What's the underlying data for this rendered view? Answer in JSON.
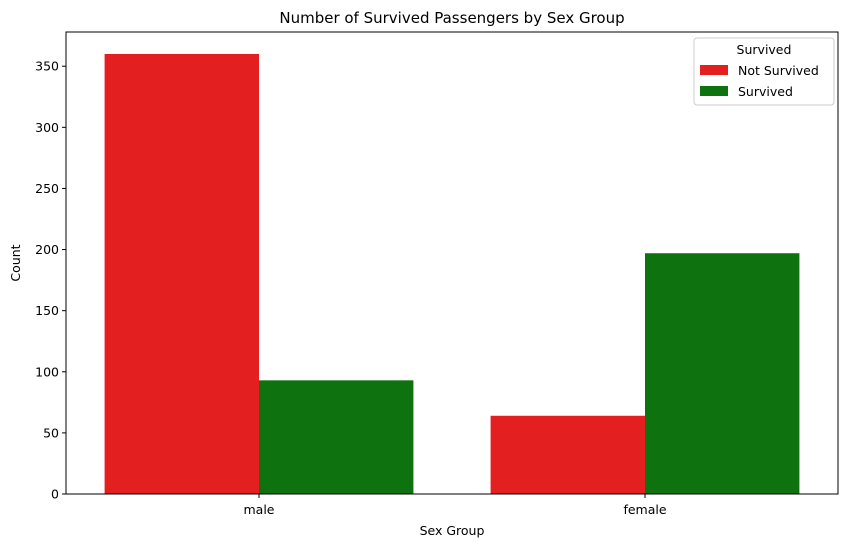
{
  "chart_data": {
    "type": "bar",
    "title": "Number of Survived Passengers by Sex Group",
    "xlabel": "Sex Group",
    "ylabel": "Count",
    "categories": [
      "male",
      "female"
    ],
    "series": [
      {
        "name": "Not Survived",
        "values": [
          360,
          64
        ],
        "color": "#e31f1f"
      },
      {
        "name": "Survived",
        "values": [
          93,
          197
        ],
        "color": "#0e720e"
      }
    ],
    "ylim": [
      0,
      378
    ],
    "yticks": [
      0,
      50,
      100,
      150,
      200,
      250,
      300,
      350
    ],
    "grid": false,
    "legend": {
      "title": "Survived",
      "position": "top-right"
    }
  }
}
